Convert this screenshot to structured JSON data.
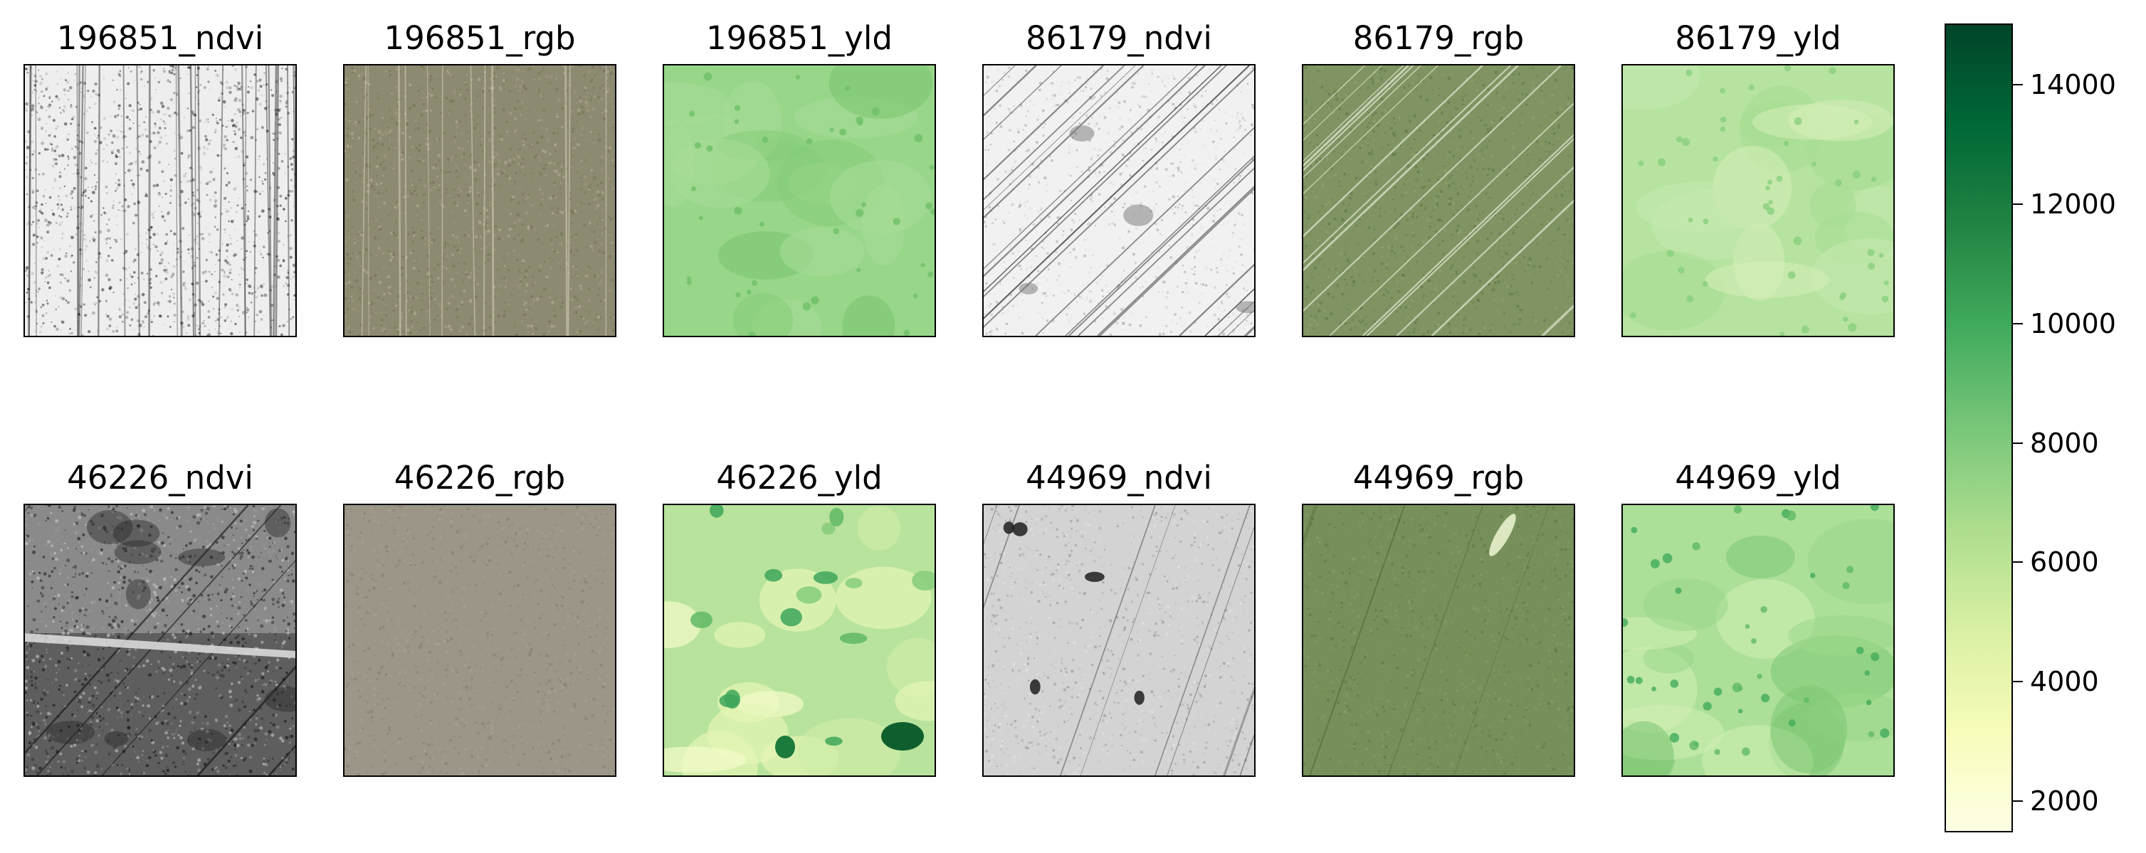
{
  "panels": [
    {
      "title": "196851_ndvi",
      "kind": "ndvi-light"
    },
    {
      "title": "196851_rgb",
      "kind": "rgb-brown"
    },
    {
      "title": "196851_yld",
      "kind": "yld-mid"
    },
    {
      "title": "86179_ndvi",
      "kind": "ndvi-diag"
    },
    {
      "title": "86179_rgb",
      "kind": "rgb-diag"
    },
    {
      "title": "86179_yld",
      "kind": "yld-light"
    },
    {
      "title": "46226_ndvi",
      "kind": "ndvi-dark"
    },
    {
      "title": "46226_rgb",
      "kind": "rgb-grey"
    },
    {
      "title": "46226_yld",
      "kind": "yld-varied"
    },
    {
      "title": "44969_ndvi",
      "kind": "ndvi-grey"
    },
    {
      "title": "44969_rgb",
      "kind": "rgb-green"
    },
    {
      "title": "44969_yld",
      "kind": "yld-diag"
    }
  ],
  "colorbar": {
    "colormap": "YlGn",
    "colors": [
      "#ffffe5",
      "#f7fcb9",
      "#d9f0a3",
      "#addd8e",
      "#78c679",
      "#41ab5d",
      "#238443",
      "#006837",
      "#004529"
    ],
    "min": 1500,
    "max": 15000,
    "ticks": [
      "2000",
      "4000",
      "6000",
      "8000",
      "10000",
      "12000",
      "14000"
    ]
  }
}
